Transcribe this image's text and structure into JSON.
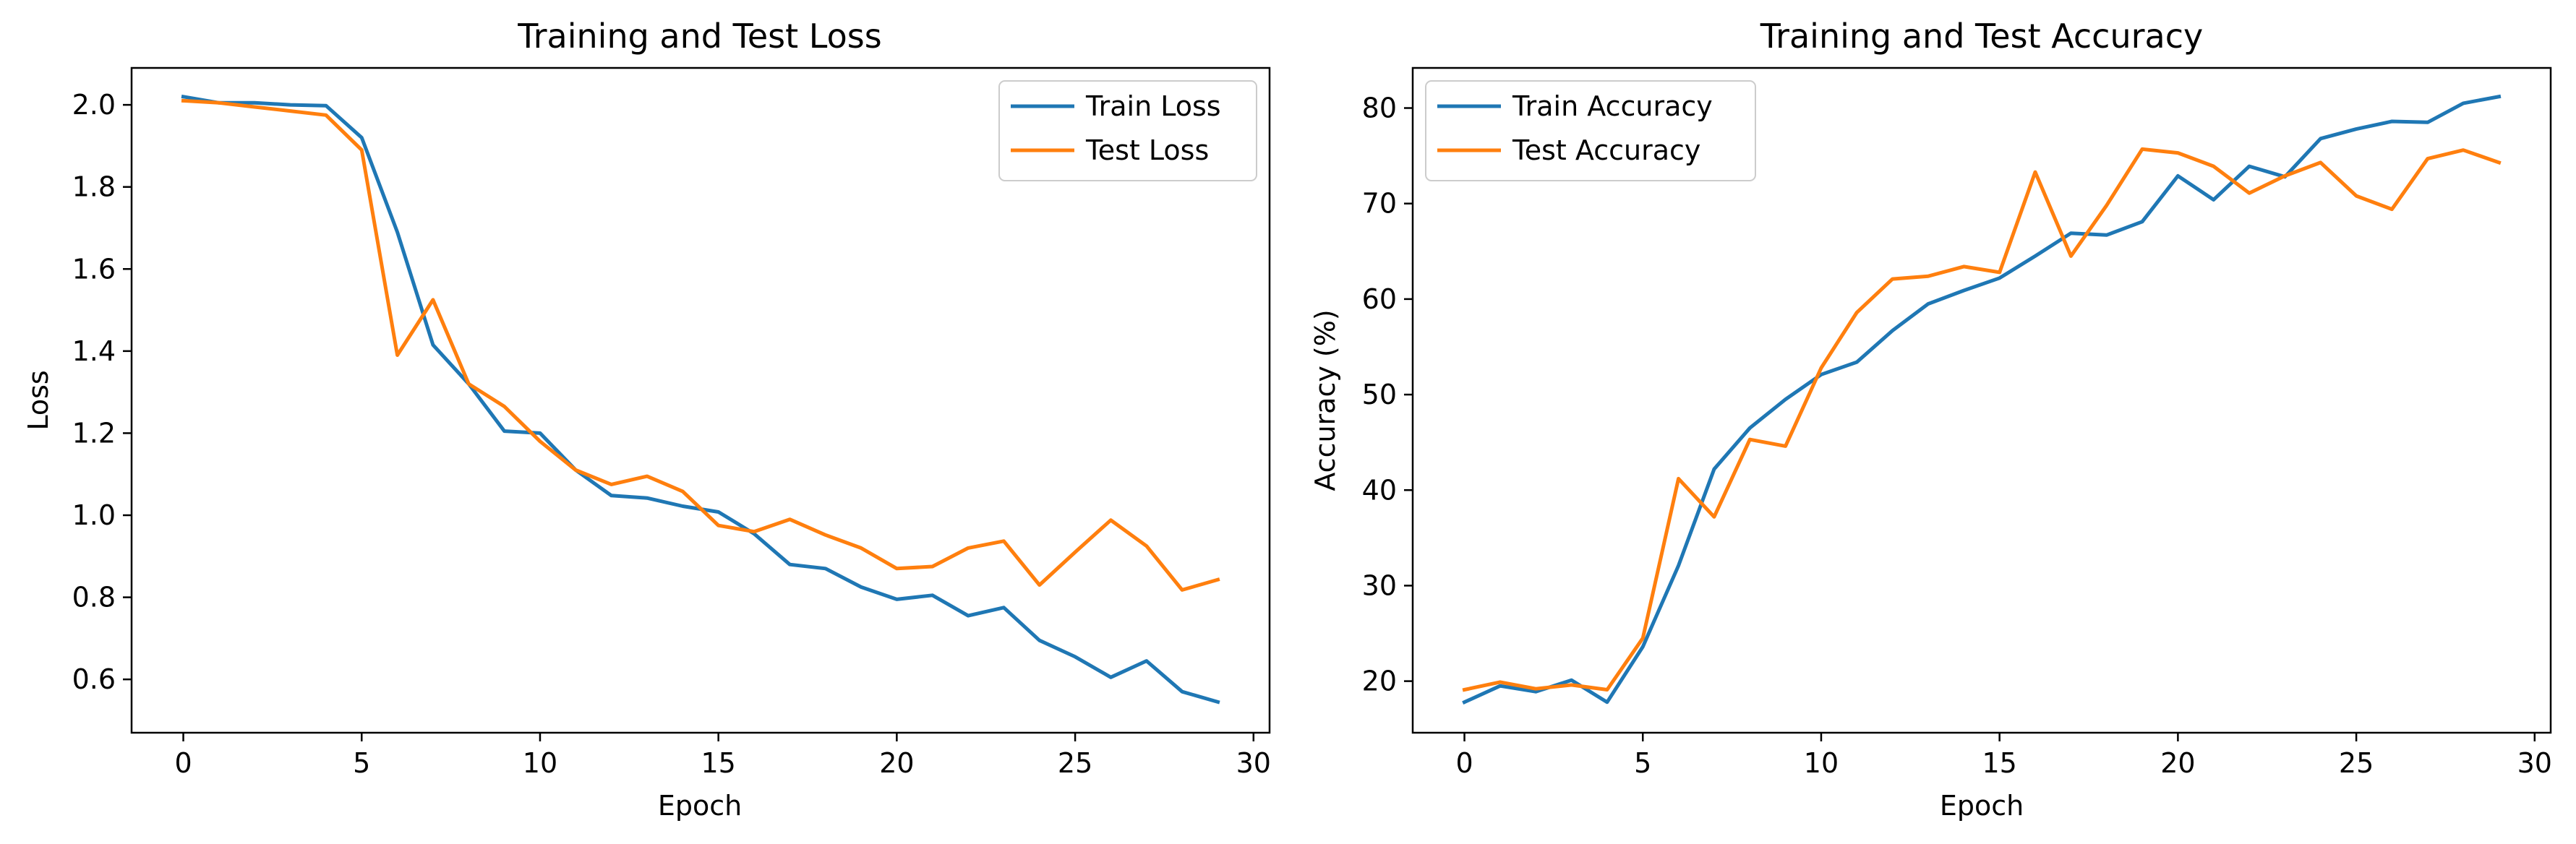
{
  "chart_data": [
    {
      "type": "line",
      "title": "Training and Test Loss",
      "xlabel": "Epoch",
      "ylabel": "Loss",
      "xlim": [
        -1.45,
        30.45
      ],
      "ylim": [
        0.47,
        2.09
      ],
      "xticks": [
        0,
        5,
        10,
        15,
        20,
        25,
        30
      ],
      "xtick_labels": [
        "0",
        "5",
        "10",
        "15",
        "20",
        "25",
        "30"
      ],
      "yticks": [
        0.6,
        0.8,
        1.0,
        1.2,
        1.4,
        1.6,
        1.8,
        2.0
      ],
      "ytick_labels": [
        "0.6",
        "0.8",
        "1.0",
        "1.2",
        "1.4",
        "1.6",
        "1.8",
        "2.0"
      ],
      "grid": false,
      "legend_position": "upper-right",
      "x": [
        0,
        1,
        2,
        3,
        4,
        5,
        6,
        7,
        8,
        9,
        10,
        11,
        12,
        13,
        14,
        15,
        16,
        17,
        18,
        19,
        20,
        21,
        22,
        23,
        24,
        25,
        26,
        27,
        28,
        29
      ],
      "series": [
        {
          "name": "Train Loss",
          "color": "#1f77b4",
          "values": [
            2.02,
            2.005,
            2.005,
            2.0,
            1.998,
            1.92,
            1.69,
            1.415,
            1.32,
            1.205,
            1.2,
            1.11,
            1.048,
            1.042,
            1.022,
            1.008,
            0.955,
            0.88,
            0.87,
            0.825,
            0.795,
            0.805,
            0.755,
            0.775,
            0.695,
            0.655,
            0.605,
            0.645,
            0.57,
            0.545
          ]
        },
        {
          "name": "Test Loss",
          "color": "#ff7f0e",
          "values": [
            2.01,
            2.005,
            1.995,
            1.985,
            1.975,
            1.89,
            1.39,
            1.525,
            1.32,
            1.265,
            1.18,
            1.11,
            1.075,
            1.095,
            1.058,
            0.975,
            0.96,
            0.99,
            0.952,
            0.92,
            0.87,
            0.875,
            0.92,
            0.937,
            0.83,
            0.91,
            0.988,
            0.925,
            0.818,
            0.843
          ]
        }
      ]
    },
    {
      "type": "line",
      "title": "Training and Test Accuracy",
      "xlabel": "Epoch",
      "ylabel": "Accuracy (%)",
      "xlim": [
        -1.45,
        30.45
      ],
      "ylim": [
        14.6,
        84.2
      ],
      "xticks": [
        0,
        5,
        10,
        15,
        20,
        25,
        30
      ],
      "xtick_labels": [
        "0",
        "5",
        "10",
        "15",
        "20",
        "25",
        "30"
      ],
      "yticks": [
        20,
        30,
        40,
        50,
        60,
        70,
        80
      ],
      "ytick_labels": [
        "20",
        "30",
        "40",
        "50",
        "60",
        "70",
        "80"
      ],
      "grid": false,
      "legend_position": "upper-left",
      "x": [
        0,
        1,
        2,
        3,
        4,
        5,
        6,
        7,
        8,
        9,
        10,
        11,
        12,
        13,
        14,
        15,
        16,
        17,
        18,
        19,
        20,
        21,
        22,
        23,
        24,
        25,
        26,
        27,
        28,
        29
      ],
      "series": [
        {
          "name": "Train Accuracy",
          "color": "#1f77b4",
          "values": [
            17.8,
            19.5,
            18.9,
            20.1,
            17.8,
            23.6,
            32.1,
            42.2,
            46.5,
            49.5,
            52.1,
            53.4,
            56.7,
            59.5,
            60.9,
            62.2,
            64.5,
            66.9,
            66.7,
            68.1,
            72.9,
            70.4,
            73.9,
            72.8,
            76.8,
            77.8,
            78.6,
            78.5,
            80.5,
            81.2
          ]
        },
        {
          "name": "Test Accuracy",
          "color": "#ff7f0e",
          "values": [
            19.1,
            19.9,
            19.2,
            19.6,
            19.1,
            24.5,
            41.2,
            37.2,
            45.3,
            44.6,
            52.8,
            58.6,
            62.1,
            62.4,
            63.4,
            62.8,
            73.3,
            64.5,
            69.8,
            75.7,
            75.3,
            73.9,
            71.1,
            72.9,
            74.3,
            70.8,
            69.4,
            74.7,
            75.6,
            74.3
          ]
        }
      ]
    }
  ]
}
